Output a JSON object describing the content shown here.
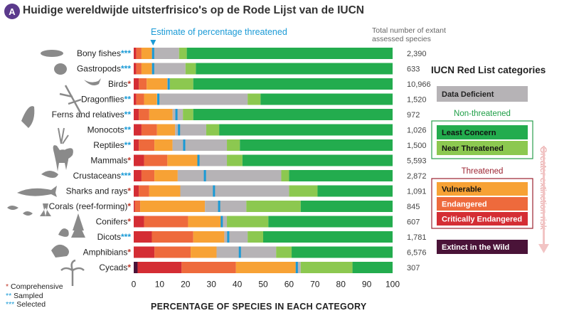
{
  "header": {
    "badge": "A",
    "title": "Huidige wereldwijde uitsterfrisico's op de Rode Lijst van de IUCN"
  },
  "annotations": {
    "estimate_label": "Estimate of percentage threatened",
    "total_label": "Total number of extant assessed species",
    "risk_label": "Greater extinction risk"
  },
  "legend": {
    "title": "IUCN Red List categories",
    "data_deficient": "Data Deficient",
    "non_threatened_header": "Non-threatened",
    "least_concern": "Least Concern",
    "near_threatened": "Near Threatened",
    "threatened_header": "Threatened",
    "vulnerable": "Vulnerable",
    "endangered": "Endangered",
    "critically_endangered": "Critically Endangered",
    "extinct_in_wild": "Extinct in the Wild"
  },
  "notes": {
    "comprehensive": "Comprehensive",
    "sampled": "Sampled",
    "selected": "Selected",
    "mark_comprehensive": "*",
    "mark_sampled": "**",
    "mark_selected": "***"
  },
  "colors": {
    "extinct_in_wild": "#4a1338",
    "critically_endangered": "#d42d34",
    "endangered": "#ee6a3c",
    "vulnerable": "#f7a235",
    "data_deficient": "#b6b3b6",
    "near_threatened": "#8cc850",
    "least_concern": "#23ac4e",
    "estimate": "#1a9ad6",
    "mark_red": "#c0392b",
    "mark_blue": "#1a9ad6"
  },
  "chart_data": {
    "type": "bar",
    "orientation": "horizontal",
    "stacked": true,
    "xlabel": "PERCENTAGE OF SPECIES IN EACH CATEGORY",
    "xlim": [
      0,
      100
    ],
    "xticks": [
      0,
      10,
      20,
      30,
      40,
      50,
      60,
      70,
      80,
      90,
      100
    ],
    "segment_order": [
      "extinct_in_wild",
      "critically_endangered",
      "endangered",
      "vulnerable",
      "data_deficient",
      "near_threatened",
      "least_concern"
    ],
    "groups": [
      {
        "label": "Bony fishes",
        "mark": "***",
        "total": "2,390",
        "estimate": 7.5,
        "values": [
          0,
          1,
          2,
          4,
          10.5,
          3,
          79.5
        ]
      },
      {
        "label": "Gastropods",
        "mark": "***",
        "total": "633",
        "estimate": 7.5,
        "values": [
          0,
          1,
          2,
          4,
          13,
          4,
          76
        ]
      },
      {
        "label": "Birds",
        "mark": "*",
        "total": "10,966",
        "estimate": 13.5,
        "values": [
          0,
          2,
          3,
          8,
          1,
          9,
          77
        ]
      },
      {
        "label": "Dragonflies",
        "mark": "**",
        "total": "1,520",
        "estimate": 9.5,
        "values": [
          0,
          1,
          3,
          5,
          35,
          5,
          51
        ]
      },
      {
        "label": "Ferns and relatives",
        "mark": "**",
        "total": "972",
        "estimate": 16.5,
        "values": [
          0,
          2,
          4,
          9,
          4,
          4,
          77
        ]
      },
      {
        "label": "Monocots",
        "mark": "**",
        "total": "1,026",
        "estimate": 17.5,
        "values": [
          0,
          3,
          6,
          7,
          12,
          5,
          67
        ]
      },
      {
        "label": "Reptiles",
        "mark": "**",
        "total": "1,500",
        "estimate": 19.5,
        "values": [
          0,
          2,
          6,
          7,
          21,
          5,
          59
        ]
      },
      {
        "label": "Mammals",
        "mark": "*",
        "total": "5,593",
        "estimate": 25,
        "values": [
          0,
          4,
          9,
          12,
          11,
          6,
          58
        ]
      },
      {
        "label": "Crustaceans",
        "mark": "***",
        "total": "2,872",
        "estimate": 27.5,
        "values": [
          0,
          3,
          5,
          9,
          40,
          3,
          40
        ]
      },
      {
        "label": "Sharks and rays",
        "mark": "*",
        "total": "1,091",
        "estimate": 31,
        "values": [
          0,
          2,
          4,
          12,
          42,
          11,
          29
        ]
      },
      {
        "label": "Corals (reef-forming)",
        "mark": "*",
        "total": "845",
        "estimate": 33,
        "values": [
          0,
          0.5,
          2,
          25,
          16,
          21,
          35.5
        ]
      },
      {
        "label": "Conifers",
        "mark": "*",
        "total": "607",
        "estimate": 34,
        "values": [
          0,
          4,
          17,
          13,
          2,
          16,
          48
        ]
      },
      {
        "label": "Dicots",
        "mark": "***",
        "total": "1,781",
        "estimate": 36.5,
        "values": [
          0,
          7,
          16,
          12,
          9,
          6,
          50
        ]
      },
      {
        "label": "Amphibians",
        "mark": "*",
        "total": "6,576",
        "estimate": 41,
        "values": [
          0,
          8,
          14,
          10,
          23,
          6,
          39
        ]
      },
      {
        "label": "Cycads",
        "mark": "*",
        "total": "307",
        "estimate": 63,
        "values": [
          1.5,
          17,
          21,
          23,
          2,
          20,
          15.5
        ]
      }
    ]
  }
}
